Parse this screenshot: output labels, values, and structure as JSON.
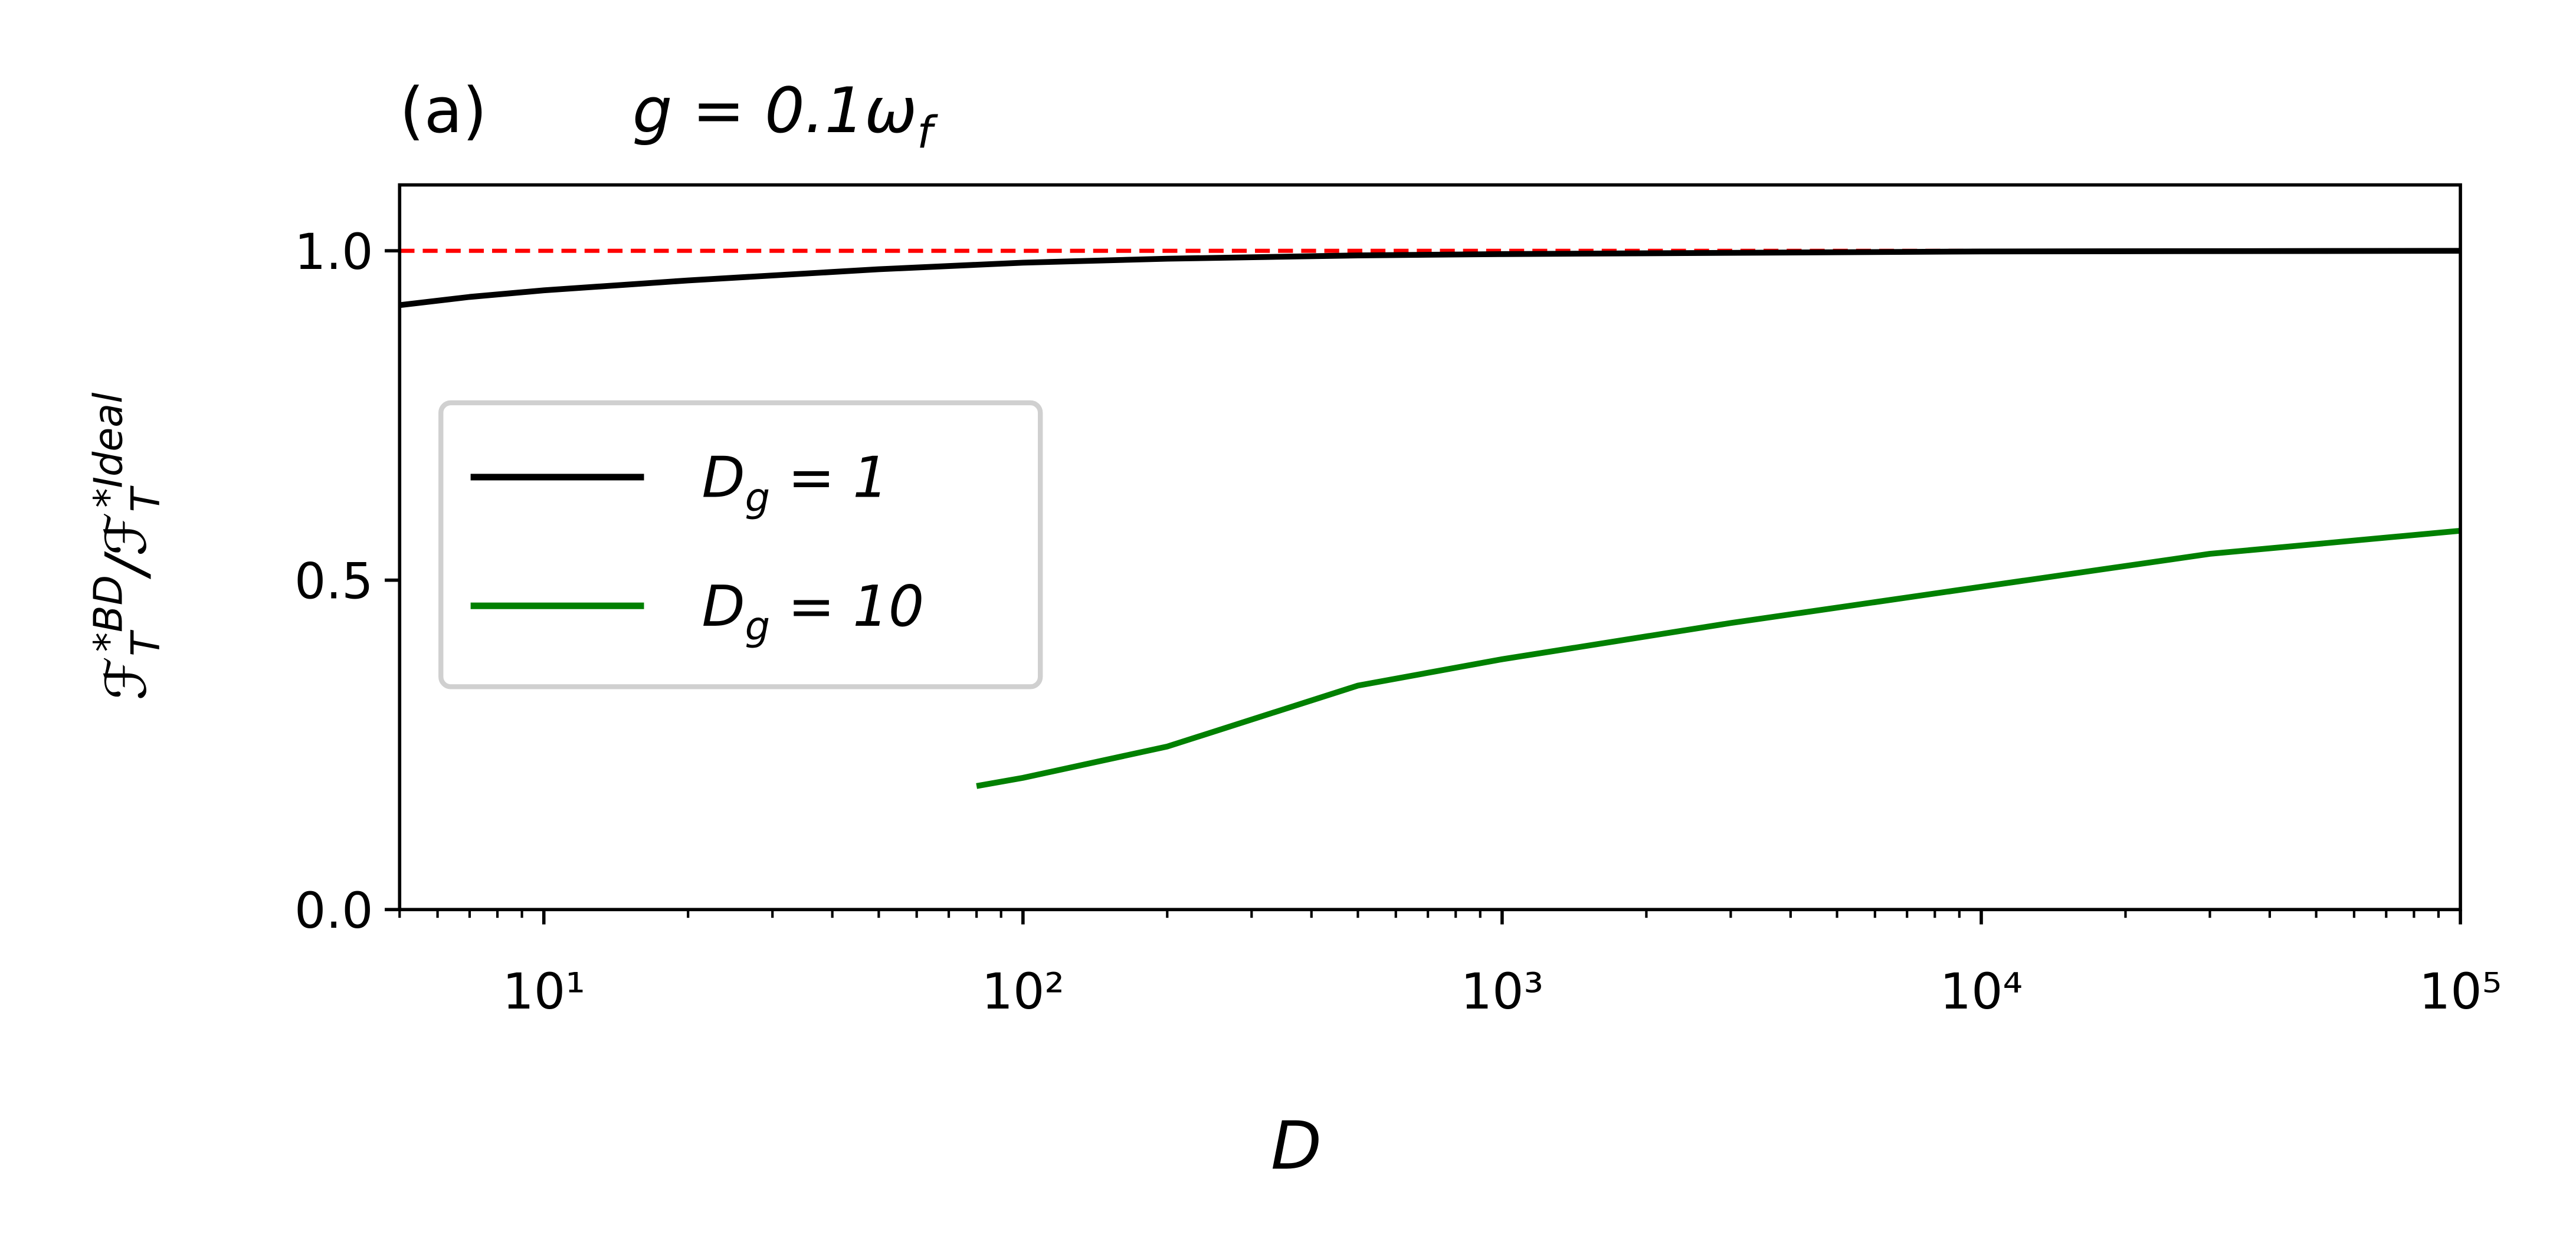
{
  "chart_data": {
    "type": "line",
    "panel_label": "(a)",
    "title": "g = 0.1ω_f",
    "x_label": "D",
    "y_label": "ℱ_T^{*BD}/ℱ_T^{*Ideal}",
    "xscale": "log",
    "xlim": [
      5,
      100000
    ],
    "xticks": [
      {
        "value": 10,
        "label": "10¹"
      },
      {
        "value": 100,
        "label": "10²"
      },
      {
        "value": 1000,
        "label": "10³"
      },
      {
        "value": 10000,
        "label": "10⁴"
      },
      {
        "value": 100000,
        "label": "10⁵"
      }
    ],
    "ylim": [
      0,
      1.1
    ],
    "yticks": [
      {
        "value": 0,
        "label": "0.0"
      },
      {
        "value": 0.5,
        "label": "0.5"
      },
      {
        "value": 1,
        "label": "1.0"
      }
    ],
    "grid": false,
    "legend": "center left",
    "reference_line": {
      "value": 1,
      "color": "#ff0000",
      "style": "dashed"
    },
    "series": [
      {
        "name": "D_g = 1",
        "color": "#000000",
        "x": [
          5,
          7,
          10,
          20,
          50,
          100,
          200,
          500,
          1000,
          10000,
          100000
        ],
        "values": [
          0.9175,
          0.93,
          0.94,
          0.955,
          0.972,
          0.982,
          0.988,
          0.993,
          0.995,
          0.999,
          1.0
        ]
      },
      {
        "name": "D_g = 10",
        "color": "#008000",
        "x": [
          80,
          100,
          200,
          500,
          1000,
          3000,
          10000,
          30000,
          100000
        ],
        "values": [
          0.1875,
          0.2,
          0.2475,
          0.34,
          0.38,
          0.435,
          0.49,
          0.54,
          0.575
        ]
      }
    ]
  }
}
